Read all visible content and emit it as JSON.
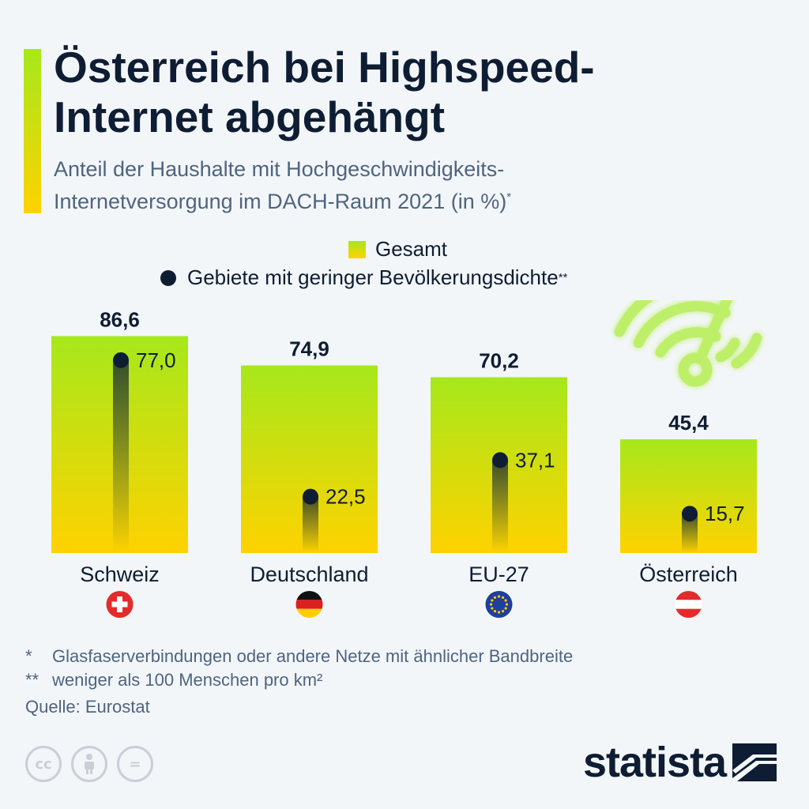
{
  "header": {
    "title_line1": "Österreich bei Highspeed-",
    "title_line2": "Internet abgehängt",
    "subtitle_line1": "Anteil der Haushalte mit Hochgeschwindigkeits-",
    "subtitle_line2": "Internetversorgung im DACH-Raum 2021 (in %)",
    "subtitle_mark": "*"
  },
  "legend": {
    "total": "Gesamt",
    "rural": "Gebiete mit geringer Bevölkerungsdichte",
    "rural_mark": "**"
  },
  "chart_data": {
    "type": "bar",
    "categories": [
      "Schweiz",
      "Deutschland",
      "EU-27",
      "Österreich"
    ],
    "series": [
      {
        "name": "Gesamt",
        "values": [
          86.6,
          74.9,
          70.2,
          45.4
        ]
      },
      {
        "name": "Gebiete mit geringer Bevölkerungsdichte",
        "values": [
          77.0,
          22.5,
          37.1,
          15.7
        ]
      }
    ],
    "value_labels_total": [
      "86,6",
      "74,9",
      "70,2",
      "45,4"
    ],
    "value_labels_rural": [
      "77,0",
      "22,5",
      "37,1",
      "15,7"
    ],
    "flags": [
      "flag-switzerland-icon",
      "flag-germany-icon",
      "flag-eu-icon",
      "flag-austria-icon"
    ],
    "ylim": [
      0,
      100
    ],
    "colors": {
      "bar_top": "#a6e81c",
      "bar_bottom": "#ffd200",
      "dot": "#0e1d33"
    }
  },
  "footnotes": {
    "note1_mark": "*",
    "note1": "Glasfaserverbindungen oder andere Netze mit ähnlicher Bandbreite",
    "note2_mark": "**",
    "note2": "weniger als 100 Menschen pro km²",
    "source": "Quelle: Eurostat"
  },
  "branding": {
    "brand": "statista",
    "license_icons": [
      "cc-icon",
      "attribution-icon",
      "no-derivatives-icon"
    ],
    "cc_label": "cc",
    "nd_label": "="
  },
  "decor": {
    "icon": "wifi-icon"
  }
}
